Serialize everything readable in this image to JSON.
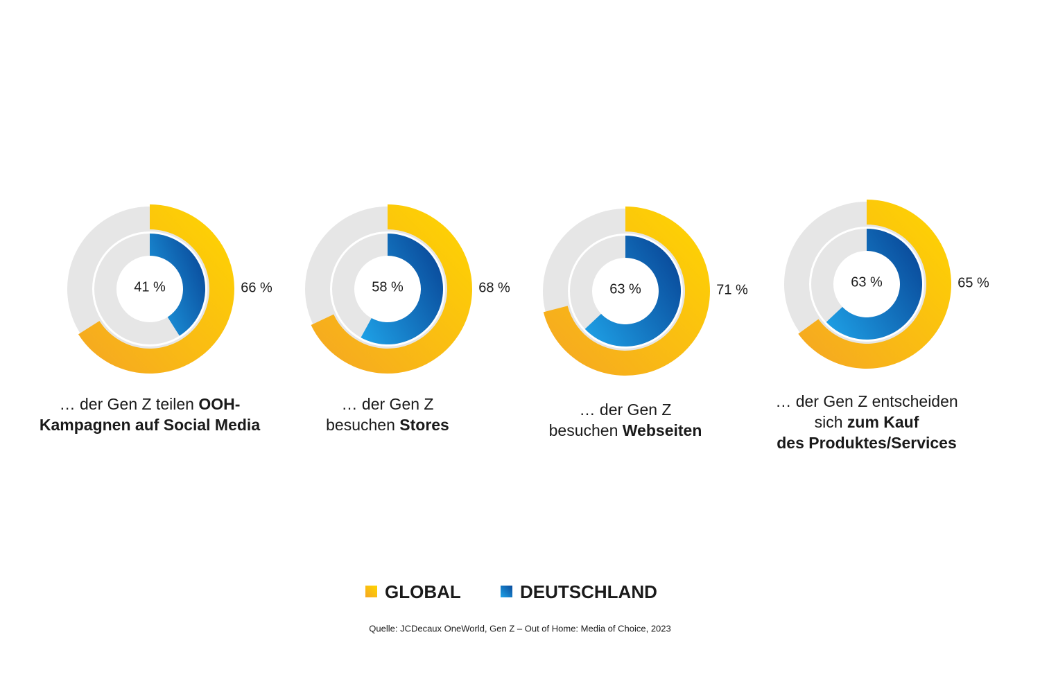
{
  "chart_data": [
    {
      "type": "donut",
      "caption": [
        [
          {
            "text": "… der Gen Z teilen ",
            "bold": false
          },
          {
            "text": "OOH-",
            "bold": true
          }
        ],
        [
          {
            "text": "Kampagnen auf Social Media",
            "bold": true
          }
        ]
      ],
      "series": [
        {
          "name": "GLOBAL",
          "gradient": [
            "#f5a623",
            "#ffd600"
          ],
          "values": [
            66
          ],
          "value_labels": [
            "66 %"
          ]
        },
        {
          "name": "DEUTSCHLAND",
          "gradient": [
            "#1fa3e8",
            "#0a4c9c"
          ],
          "values": [
            41
          ],
          "value_labels": [
            "41 %"
          ]
        }
      ]
    },
    {
      "type": "donut",
      "caption": [
        [
          {
            "text": "… der Gen Z",
            "bold": false
          }
        ],
        [
          {
            "text": "besuchen ",
            "bold": false
          },
          {
            "text": "Stores",
            "bold": true
          }
        ]
      ],
      "series": [
        {
          "name": "GLOBAL",
          "gradient": [
            "#f5a623",
            "#ffd600"
          ],
          "values": [
            68
          ],
          "value_labels": [
            "68 %"
          ]
        },
        {
          "name": "DEUTSCHLAND",
          "gradient": [
            "#1fa3e8",
            "#0a4c9c"
          ],
          "values": [
            58
          ],
          "value_labels": [
            "58 %"
          ]
        }
      ]
    },
    {
      "type": "donut",
      "caption": [
        [
          {
            "text": "… der Gen Z",
            "bold": false
          }
        ],
        [
          {
            "text": "besuchen ",
            "bold": false
          },
          {
            "text": "Webseiten",
            "bold": true
          }
        ]
      ],
      "series": [
        {
          "name": "GLOBAL",
          "gradient": [
            "#f5a623",
            "#ffd600"
          ],
          "values": [
            71
          ],
          "value_labels": [
            "71 %"
          ]
        },
        {
          "name": "DEUTSCHLAND",
          "gradient": [
            "#1fa3e8",
            "#0a4c9c"
          ],
          "values": [
            63
          ],
          "value_labels": [
            "63 %"
          ]
        }
      ]
    },
    {
      "type": "donut",
      "caption": [
        [
          {
            "text": "… der Gen Z entscheiden",
            "bold": false
          }
        ],
        [
          {
            "text": "sich ",
            "bold": false
          },
          {
            "text": "zum Kauf",
            "bold": true
          }
        ],
        [
          {
            "text": "des Produktes/Services",
            "bold": true
          }
        ]
      ],
      "series": [
        {
          "name": "GLOBAL",
          "gradient": [
            "#f5a623",
            "#ffd600"
          ],
          "values": [
            65
          ],
          "value_labels": [
            "65 %"
          ]
        },
        {
          "name": "DEUTSCHLAND",
          "gradient": [
            "#1fa3e8",
            "#0a4c9c"
          ],
          "values": [
            63
          ],
          "value_labels": [
            "63 %"
          ]
        }
      ]
    }
  ],
  "source": "Quelle: JCDecaux OneWorld, Gen Z – Out of Home: Media of Choice, 2023"
}
